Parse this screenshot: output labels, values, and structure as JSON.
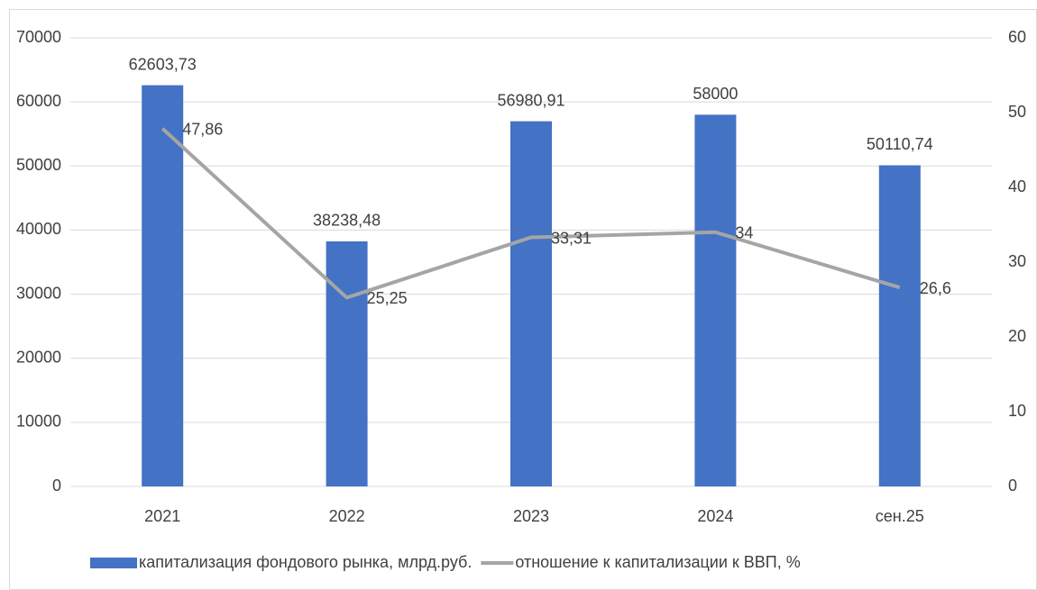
{
  "chart_data": {
    "type": "bar",
    "categories": [
      "2021",
      "2022",
      "2023",
      "2024",
      "сен.25"
    ],
    "series": [
      {
        "name": "капитализация фондового рынка, млрд.руб.",
        "type": "bar",
        "color": "#4472c4",
        "values": [
          62603.73,
          38238.48,
          56980.91,
          58000,
          50110.74
        ],
        "value_labels": [
          "62603,73",
          "38238,48",
          "56980,91",
          "58000",
          "50110,74"
        ]
      },
      {
        "name": "отношение к капитализации к ВВП, %",
        "type": "line",
        "axis": "y2",
        "color": "#a5a5a5",
        "values": [
          47.86,
          25.25,
          33.31,
          34,
          26.6
        ],
        "value_labels": [
          "47,86",
          "25,25",
          "33,31",
          "34",
          "26,6"
        ]
      }
    ],
    "ylim": [
      0,
      70000
    ],
    "yticks": [
      0,
      10000,
      20000,
      30000,
      40000,
      50000,
      60000,
      70000
    ],
    "y2lim": [
      0,
      60
    ],
    "y2ticks": [
      0,
      10,
      20,
      30,
      40,
      50,
      60
    ],
    "grid": true,
    "legend": "bottom"
  }
}
